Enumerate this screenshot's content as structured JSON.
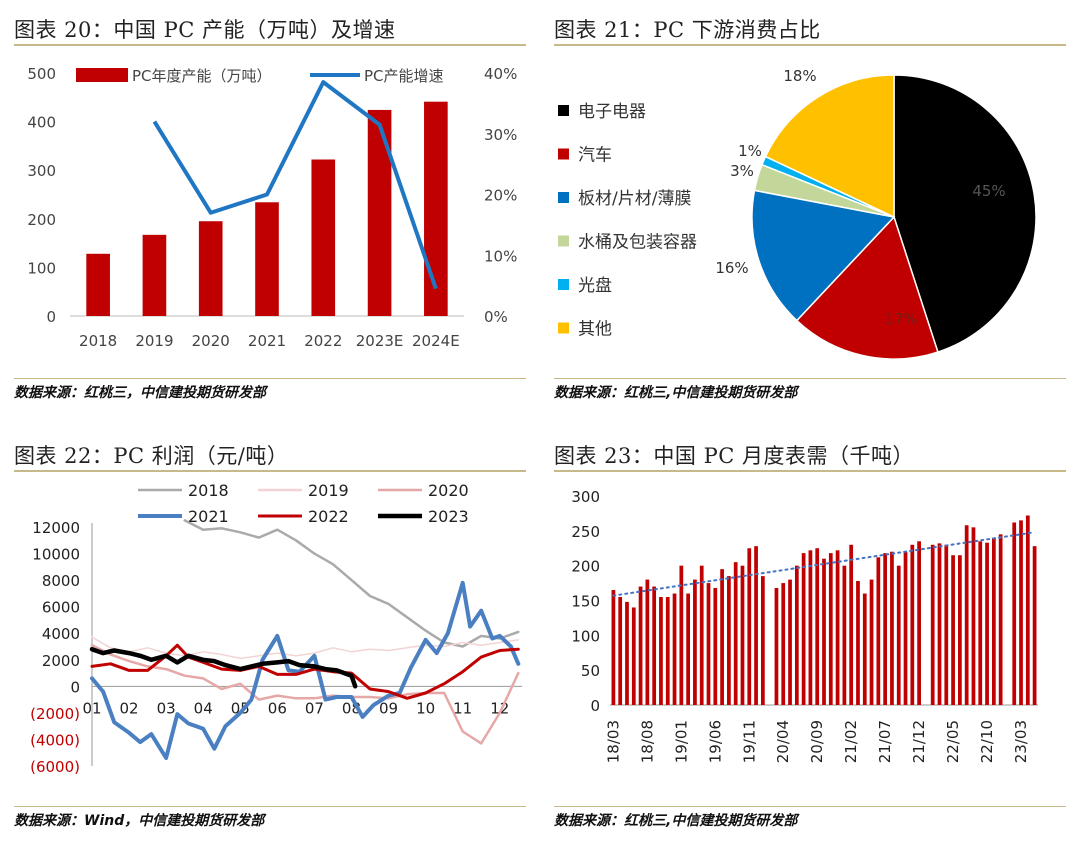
{
  "panels": [
    {
      "title": "图表 20：中国 PC 产能（万吨）及增速",
      "source": "数据来源：红桃三，中信建投期货研发部"
    },
    {
      "title": "图表 21：PC 下游消费占比",
      "source": "数据来源：红桃三,中信建投期货研发部"
    },
    {
      "title": "图表 22：PC 利润（元/吨）",
      "source": "数据来源：Wind，中信建投期货研发部"
    },
    {
      "title": "图表 23：中国 PC 月度表需（千吨）",
      "source": "数据来源：红桃三,中信建投期货研发部"
    }
  ],
  "colors": {
    "red": "#c00000",
    "blue": "#1f77c4",
    "black": "#000000",
    "gold": "#ffc000",
    "lightgreen": "#c4d79b",
    "cyan": "#00b0f0",
    "gray": "#aaaaaa",
    "pinklight": "#f2d4d4",
    "pink": "#e6a7a7",
    "rule": "#c8b98a"
  },
  "chart_data": [
    {
      "type": "bar",
      "categories": [
        "2018",
        "2019",
        "2020",
        "2021",
        "2022",
        "2023E",
        "2024E"
      ],
      "series": [
        {
          "name": "PC年度产能（万吨）",
          "type": "bar",
          "axis": "left",
          "values": [
            128,
            167,
            195,
            234,
            322,
            424,
            441
          ]
        },
        {
          "name": "PC产能增速",
          "type": "line",
          "axis": "right",
          "values": [
            null,
            32,
            17,
            20,
            38.5,
            31.5,
            4.5
          ]
        }
      ],
      "yticks_left": [
        "500",
        "400",
        "300",
        "200",
        "100",
        "0"
      ],
      "yticks_right": [
        "40%",
        "30%",
        "20%",
        "10%",
        "0%"
      ],
      "ylim_left": [
        0,
        500
      ],
      "ylim_right": [
        0,
        40
      ],
      "legend": "top"
    },
    {
      "type": "pie",
      "labels": [
        "电子电器",
        "汽车",
        "板材/片材/薄膜",
        "水桶及包装容器",
        "光盘",
        "其他"
      ],
      "values": [
        45,
        17,
        16,
        3,
        1,
        18
      ],
      "value_labels": [
        "45%",
        "17%",
        "16%",
        "3%",
        "1%",
        "18%"
      ],
      "colors": [
        "#000000",
        "#c00000",
        "#0070c0",
        "#c4d79b",
        "#00b0f0",
        "#ffc000"
      ],
      "legend": "left"
    },
    {
      "type": "line",
      "x_ticks": [
        "01",
        "02",
        "03",
        "04",
        "05",
        "06",
        "07",
        "08",
        "09",
        "10",
        "11",
        "12"
      ],
      "yticks": [
        "12000",
        "10000",
        "8000",
        "6000",
        "4000",
        "2000",
        "0",
        "(2000)",
        "(4000)",
        "(6000)"
      ],
      "ylim": [
        -6000,
        12000
      ],
      "legend": "top",
      "series": [
        {
          "name": "2018",
          "color": "#aaaaaa",
          "width": 2.5,
          "x": [
            3.5,
            4,
            4.5,
            5,
            5.5,
            6,
            6.5,
            7,
            7.5,
            8,
            8.5,
            9,
            9.5,
            10,
            10.5,
            11,
            11.5,
            12,
            12.5
          ],
          "y": [
            12500,
            11800,
            11900,
            11600,
            11200,
            11800,
            11000,
            10000,
            9200,
            8000,
            6800,
            6200,
            5200,
            4200,
            3300,
            3000,
            3800,
            3600,
            4100
          ]
        },
        {
          "name": "2019",
          "color": "#f2d4d4",
          "width": 1.5,
          "x": [
            1,
            1.5,
            2,
            2.5,
            3,
            3.5,
            4,
            4.5,
            5,
            5.5,
            6,
            6.5,
            7,
            7.5,
            8,
            8.5,
            9,
            9.5,
            10,
            10.5,
            11,
            11.5,
            12,
            12.5
          ],
          "y": [
            3700,
            2900,
            2600,
            2900,
            2500,
            2300,
            2600,
            2400,
            2100,
            2300,
            2500,
            2300,
            2500,
            2900,
            2600,
            2800,
            2700,
            2900,
            3100,
            3000,
            3300,
            3100,
            3300,
            3500
          ]
        },
        {
          "name": "2020",
          "color": "#e6a7a7",
          "width": 2.5,
          "x": [
            1,
            1.5,
            2,
            2.5,
            3,
            3.5,
            4,
            4.5,
            5,
            5.5,
            6,
            6.5,
            7,
            7.5,
            8,
            8.5,
            9,
            9.5,
            10,
            10.5,
            11,
            11.5,
            12,
            12.5
          ],
          "y": [
            3100,
            2400,
            1900,
            1500,
            1300,
            800,
            600,
            -200,
            200,
            -1000,
            -700,
            -900,
            -900,
            -700,
            -800,
            -800,
            -900,
            -600,
            -500,
            -500,
            -3400,
            -4300,
            -2000,
            1000
          ]
        },
        {
          "name": "2021",
          "color": "#4a7fc1",
          "width": 4,
          "x": [
            1,
            1.3,
            1.6,
            2,
            2.3,
            2.6,
            3,
            3.3,
            3.6,
            4,
            4.3,
            4.6,
            5,
            5.3,
            5.6,
            6,
            6.3,
            6.6,
            7,
            7.3,
            7.6,
            8,
            8.3,
            8.6,
            9,
            9.3,
            9.6,
            10,
            10.3,
            10.6,
            11,
            11.2,
            11.5,
            11.8,
            12,
            12.3,
            12.5
          ],
          "y": [
            600,
            -400,
            -2700,
            -3500,
            -4200,
            -3600,
            -5400,
            -2100,
            -2800,
            -3200,
            -4700,
            -3000,
            -2000,
            -1000,
            2000,
            3800,
            1200,
            1100,
            2300,
            -1000,
            -800,
            -800,
            -2300,
            -1400,
            -700,
            -500,
            1400,
            3500,
            2500,
            4000,
            7800,
            4500,
            5700,
            3600,
            3800,
            3000,
            1700
          ]
        },
        {
          "name": "2022",
          "color": "#c00000",
          "width": 3,
          "x": [
            1,
            1.5,
            2,
            2.5,
            3,
            3.3,
            3.6,
            4,
            4.5,
            5,
            5.5,
            6,
            6.5,
            7,
            7.5,
            8,
            8.5,
            9,
            9.5,
            10,
            10.5,
            11,
            11.5,
            12,
            12.5
          ],
          "y": [
            1500,
            1700,
            1200,
            1200,
            2300,
            3100,
            2200,
            1800,
            1300,
            1200,
            1500,
            900,
            900,
            1300,
            1100,
            1000,
            -200,
            -400,
            -900,
            -500,
            200,
            1100,
            2200,
            2700,
            2800
          ]
        },
        {
          "name": "2023",
          "color": "#000000",
          "width": 4.5,
          "x": [
            1,
            1.3,
            1.6,
            2,
            2.3,
            2.6,
            3,
            3.3,
            3.6,
            4,
            4.3,
            4.6,
            5,
            5.3,
            5.6,
            6,
            6.3,
            6.6,
            7,
            7.3,
            7.6,
            8,
            8.1
          ],
          "y": [
            2800,
            2500,
            2700,
            2500,
            2300,
            2000,
            2300,
            1800,
            2300,
            2000,
            1900,
            1600,
            1300,
            1500,
            1700,
            1800,
            1900,
            1600,
            1500,
            1300,
            1200,
            800,
            0
          ]
        }
      ]
    },
    {
      "type": "bar",
      "x_ticks": [
        "18/03",
        "18/08",
        "19/01",
        "19/06",
        "19/11",
        "20/04",
        "20/09",
        "21/02",
        "21/07",
        "21/12",
        "22/05",
        "22/10",
        "23/03"
      ],
      "yticks": [
        "300",
        "250",
        "200",
        "150",
        "100",
        "50",
        "0"
      ],
      "ylim": [
        0,
        300
      ],
      "trendline": {
        "style": "dotted",
        "color": "#4472c4",
        "start": 157,
        "end": 248
      },
      "values": [
        165,
        155,
        148,
        140,
        170,
        180,
        170,
        155,
        155,
        160,
        200,
        160,
        180,
        200,
        175,
        168,
        195,
        185,
        205,
        200,
        225,
        228,
        185,
        null,
        168,
        175,
        180,
        200,
        218,
        222,
        225,
        210,
        218,
        222,
        200,
        230,
        178,
        160,
        180,
        212,
        218,
        220,
        200,
        220,
        230,
        235,
        null,
        230,
        232,
        230,
        215,
        215,
        258,
        255,
        235,
        233,
        240,
        245,
        null,
        262,
        265,
        272,
        228
      ]
    }
  ]
}
